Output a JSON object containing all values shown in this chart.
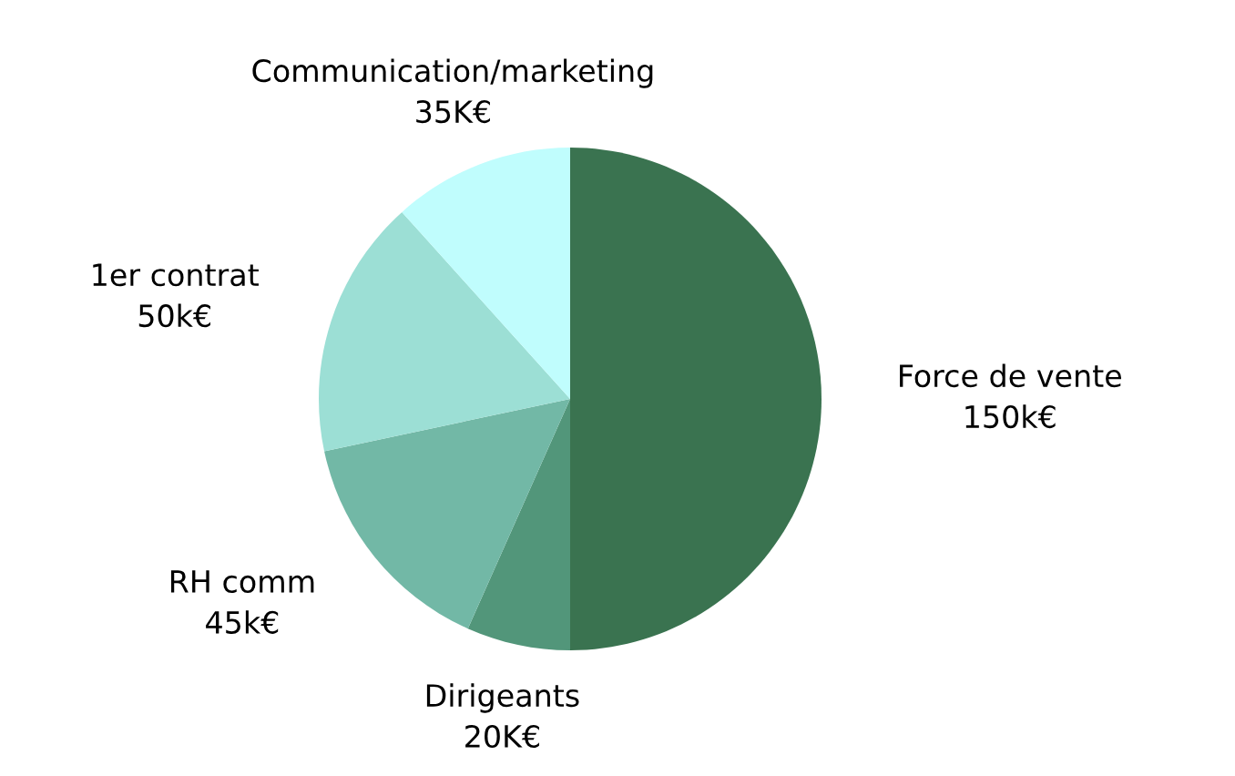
{
  "chart_data": {
    "type": "pie",
    "categories": [
      "Force de vente",
      "Dirigeants",
      "RH comm",
      "1er contrat",
      "Communication/marketing"
    ],
    "values": [
      150,
      20,
      45,
      50,
      35
    ],
    "value_labels": [
      "150k€",
      "20K€",
      "45k€",
      "50k€",
      "35K€"
    ],
    "colors": [
      "#3a7350",
      "#52967a",
      "#72b8a6",
      "#9cdfd5",
      "#c0fdfd"
    ],
    "legend": false
  }
}
